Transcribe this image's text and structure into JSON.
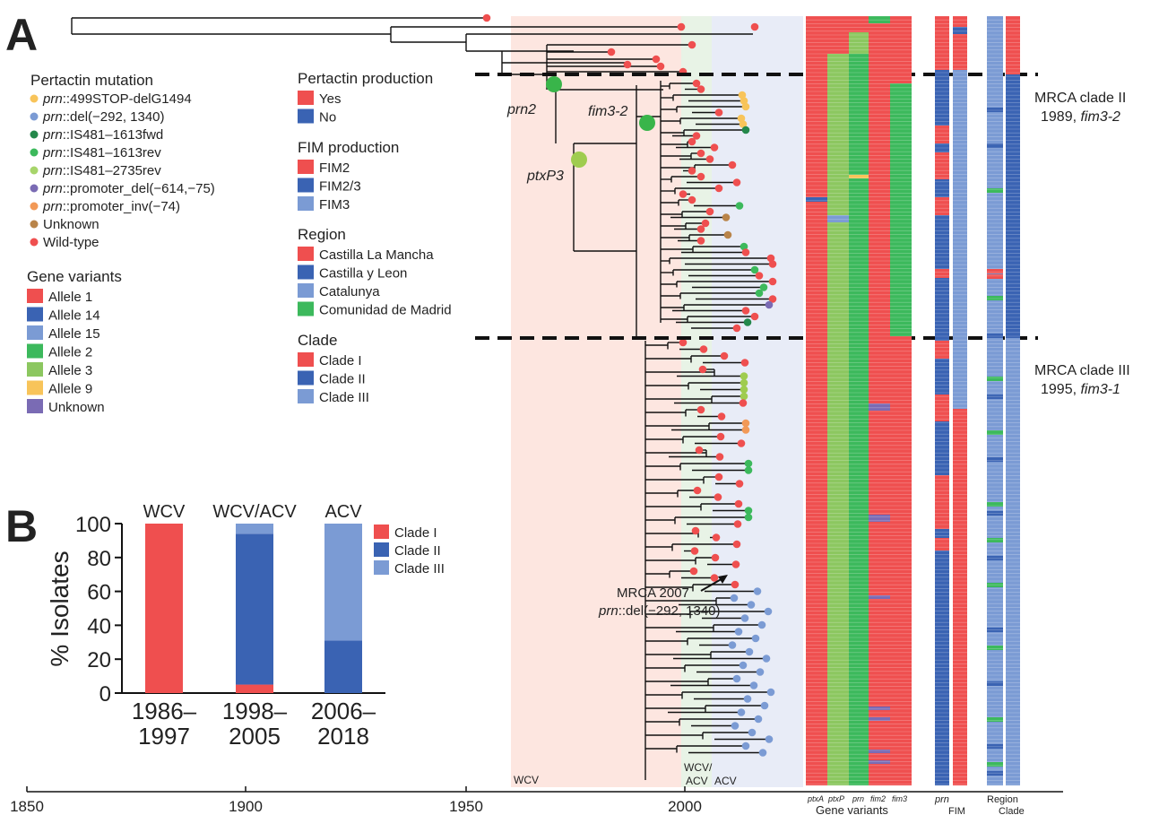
{
  "panel_labels": {
    "a": "A",
    "b": "B"
  },
  "colors": {
    "red": "#ef4f4f",
    "dark_blue": "#3a63b3",
    "light_blue": "#7b9bd4",
    "green": "#3cb95c",
    "light_green": "#8cc760",
    "yellow": "#f8c45a",
    "purple": "#7a6bb4",
    "orange": "#f29957",
    "brown": "#b98449",
    "dark_green": "#24884b",
    "tree_green": "#39b54a",
    "tree_lightgreen": "#9fcc4f",
    "wcv_bg": "#fde6e0",
    "wcvacv_bg": "#e8f3e6",
    "acv_bg": "#e8ecf7"
  },
  "legend": {
    "pertactin_mutation": {
      "title": "Pertactin mutation",
      "items": [
        {
          "prefix": "prn",
          "label": "::499STOP-delG1494",
          "color": "#f8c45a"
        },
        {
          "prefix": "prn",
          "label": "::del(−292, 1340)",
          "color": "#7b9bd4"
        },
        {
          "prefix": "prn",
          "label": "::IS481–1613fwd",
          "color": "#24884b"
        },
        {
          "prefix": "prn",
          "label": "::IS481–1613rev",
          "color": "#3cb95c"
        },
        {
          "prefix": "prn",
          "label": "::IS481–2735rev",
          "color": "#a7d56b"
        },
        {
          "prefix": "prn",
          "label": "::promoter_del(−614,−75)",
          "color": "#7a6bb4"
        },
        {
          "prefix": "prn",
          "label": "::promoter_inv(−74)",
          "color": "#f29957"
        },
        {
          "prefix": "",
          "label": "Unknown",
          "color": "#b98449"
        },
        {
          "prefix": "",
          "label": "Wild-type",
          "color": "#ef4f4f"
        }
      ]
    },
    "gene_variants": {
      "title": "Gene variants",
      "items": [
        {
          "label": "Allele 1",
          "color": "#ef4f4f"
        },
        {
          "label": "Allele 14",
          "color": "#3a63b3"
        },
        {
          "label": "Allele 15",
          "color": "#7b9bd4"
        },
        {
          "label": "Allele 2",
          "color": "#3cb95c"
        },
        {
          "label": "Allele 3",
          "color": "#8cc760"
        },
        {
          "label": "Allele 9",
          "color": "#f8c45a"
        },
        {
          "label": "Unknown",
          "color": "#7a6bb4"
        }
      ]
    },
    "pertactin_production": {
      "title": "Pertactin production",
      "items": [
        {
          "label": "Yes",
          "color": "#ef4f4f"
        },
        {
          "label": "No",
          "color": "#3a63b3"
        }
      ]
    },
    "fim_production": {
      "title": "FIM production",
      "items": [
        {
          "label": "FIM2",
          "color": "#ef4f4f"
        },
        {
          "label": "FIM2/3",
          "color": "#3a63b3"
        },
        {
          "label": "FIM3",
          "color": "#7b9bd4"
        }
      ]
    },
    "region": {
      "title": "Region",
      "items": [
        {
          "label": "Castilla La Mancha",
          "color": "#ef4f4f"
        },
        {
          "label": "Castilla y Leon",
          "color": "#3a63b3"
        },
        {
          "label": "Catalunya",
          "color": "#7b9bd4"
        },
        {
          "label": "Comunidad de Madrid",
          "color": "#3cb95c"
        }
      ]
    },
    "clade": {
      "title": "Clade",
      "items": [
        {
          "label": "Clade I",
          "color": "#ef4f4f"
        },
        {
          "label": "Clade II",
          "color": "#3a63b3"
        },
        {
          "label": "Clade III",
          "color": "#7b9bd4"
        }
      ]
    }
  },
  "tree": {
    "node_labels": [
      "prn2",
      "fim3-2",
      "ptxP3"
    ],
    "mrca_clade2": {
      "line1": "MRCA clade II",
      "line2a": "1989, ",
      "line2b": "fim3-2"
    },
    "mrca_clade3": {
      "line1": "MRCA clade III",
      "line2a": "1995, ",
      "line2b": "fim3-1"
    },
    "mrca_2007": {
      "line1": "MRCA 2007",
      "line2a": "prn",
      "line2b": "::del(−292, 1340)"
    },
    "period_labels": [
      "WCV",
      "WCV/",
      "ACV",
      "ACV"
    ],
    "x_ticks": [
      "1850",
      "1900",
      "1950",
      "2000"
    ],
    "column_labels": [
      "ptxA",
      "ptxP",
      "prn",
      "fim2",
      "fim3"
    ],
    "gene_variants_label": "Gene variants",
    "prod_labels": [
      "prn",
      "FIM"
    ],
    "region_clade_labels": [
      "Region",
      "Clade"
    ]
  },
  "chart_data": {
    "type": "bar",
    "stacked": true,
    "group_labels": [
      "WCV",
      "WCV/ACV",
      "ACV"
    ],
    "categories": [
      "1986–1997",
      "1998–2005",
      "2006–2018"
    ],
    "series": [
      {
        "name": "Clade I",
        "values": [
          100,
          5,
          0
        ],
        "color": "#ef4f4f"
      },
      {
        "name": "Clade II",
        "values": [
          0,
          89,
          31
        ],
        "color": "#3a63b3"
      },
      {
        "name": "Clade III",
        "values": [
          0,
          6,
          69
        ],
        "color": "#7b9bd4"
      }
    ],
    "ylabel": "% Isolates",
    "yticks": [
      0,
      20,
      40,
      60,
      80,
      100
    ],
    "ylim": [
      0,
      100
    ],
    "legend_position": "right"
  }
}
